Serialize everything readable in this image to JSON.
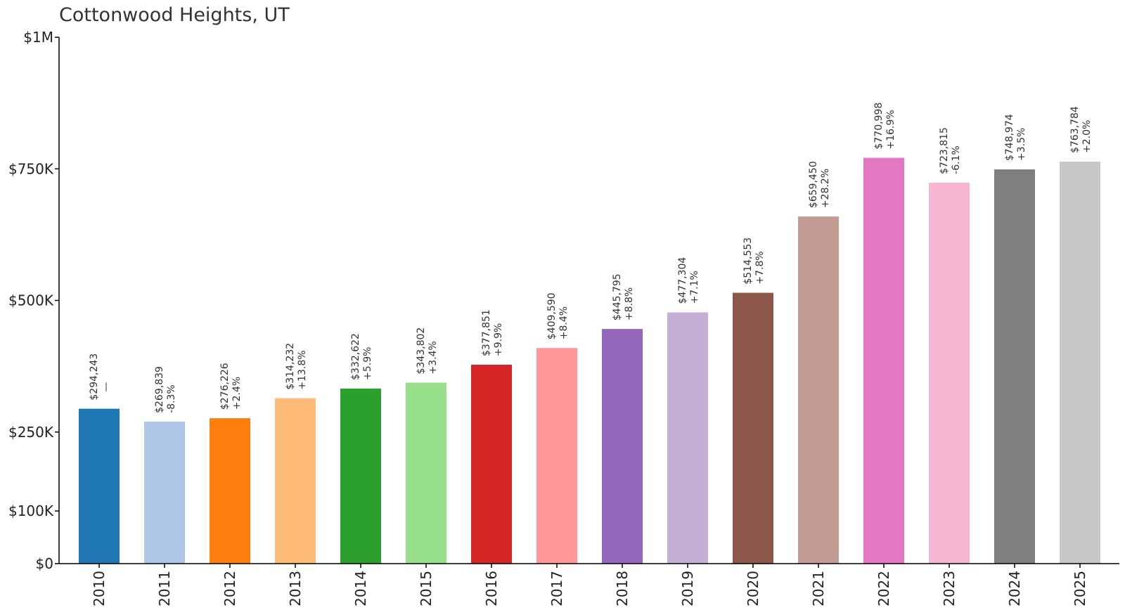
{
  "chart_data": {
    "type": "bar",
    "title": "Cottonwood Heights, UT",
    "xlabel": "",
    "ylabel": "",
    "categories": [
      "2010",
      "2011",
      "2012",
      "2013",
      "2014",
      "2015",
      "2016",
      "2017",
      "2018",
      "2019",
      "2020",
      "2021",
      "2022",
      "2023",
      "2024",
      "2025"
    ],
    "values": [
      294243,
      269839,
      276226,
      314232,
      332622,
      343802,
      377851,
      409590,
      445795,
      477304,
      514553,
      659450,
      770998,
      723815,
      748974,
      763784
    ],
    "value_labels": [
      "$294,243",
      "$269,839",
      "$276,226",
      "$314,232",
      "$332,622",
      "$343,802",
      "$377,851",
      "$409,590",
      "$445,795",
      "$477,304",
      "$514,553",
      "$659,450",
      "$770,998",
      "$723,815",
      "$748,974",
      "$763,784"
    ],
    "change_labels": [
      "—",
      "-8.3%",
      "+2.4%",
      "+13.8%",
      "+5.9%",
      "+3.4%",
      "+9.9%",
      "+8.4%",
      "+8.8%",
      "+7.1%",
      "+7.8%",
      "+28.2%",
      "+16.9%",
      "-6.1%",
      "+3.5%",
      "+2.0%"
    ],
    "colors": [
      "#1f77b4",
      "#aec7e8",
      "#ff7f0e",
      "#ffbb78",
      "#2ca02c",
      "#98df8a",
      "#d62728",
      "#ff9896",
      "#9467bd",
      "#c5b0d5",
      "#8c564b",
      "#c49c94",
      "#e377c2",
      "#f7b6d2",
      "#7f7f7f",
      "#c7c7c7"
    ],
    "ylim": [
      0,
      1000000
    ],
    "yticks": [
      {
        "value": 0,
        "label": "$0"
      },
      {
        "value": 100000,
        "label": "$100K"
      },
      {
        "value": 250000,
        "label": "$250K"
      },
      {
        "value": 500000,
        "label": "$500K"
      },
      {
        "value": 750000,
        "label": "$750K"
      },
      {
        "value": 1000000,
        "label": "$1M"
      }
    ],
    "grid": false,
    "legend": "none"
  }
}
